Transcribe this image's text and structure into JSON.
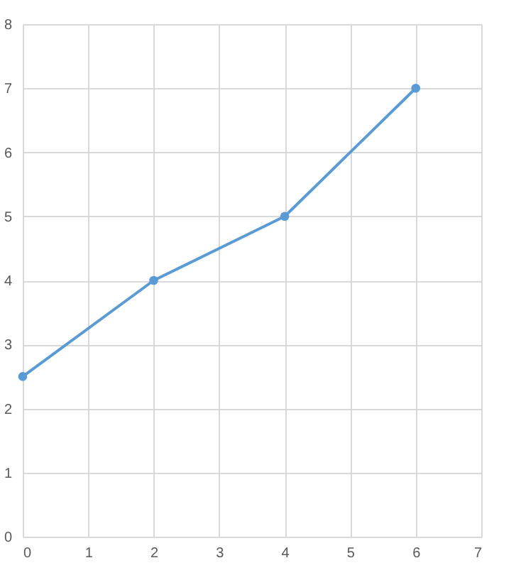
{
  "chart_data": {
    "type": "line",
    "x": [
      0,
      2,
      4,
      6
    ],
    "series": [
      {
        "color": "#5b9bd5",
        "values": [
          2.5,
          4,
          5,
          7
        ]
      }
    ],
    "xlim": [
      0,
      7
    ],
    "ylim": [
      0,
      8
    ],
    "xticks": [
      0,
      1,
      2,
      3,
      4,
      5,
      6,
      7
    ],
    "yticks": [
      0,
      1,
      2,
      3,
      4,
      5,
      6,
      7,
      8
    ],
    "grid": true,
    "marker": "circle",
    "line_style": "solid"
  }
}
